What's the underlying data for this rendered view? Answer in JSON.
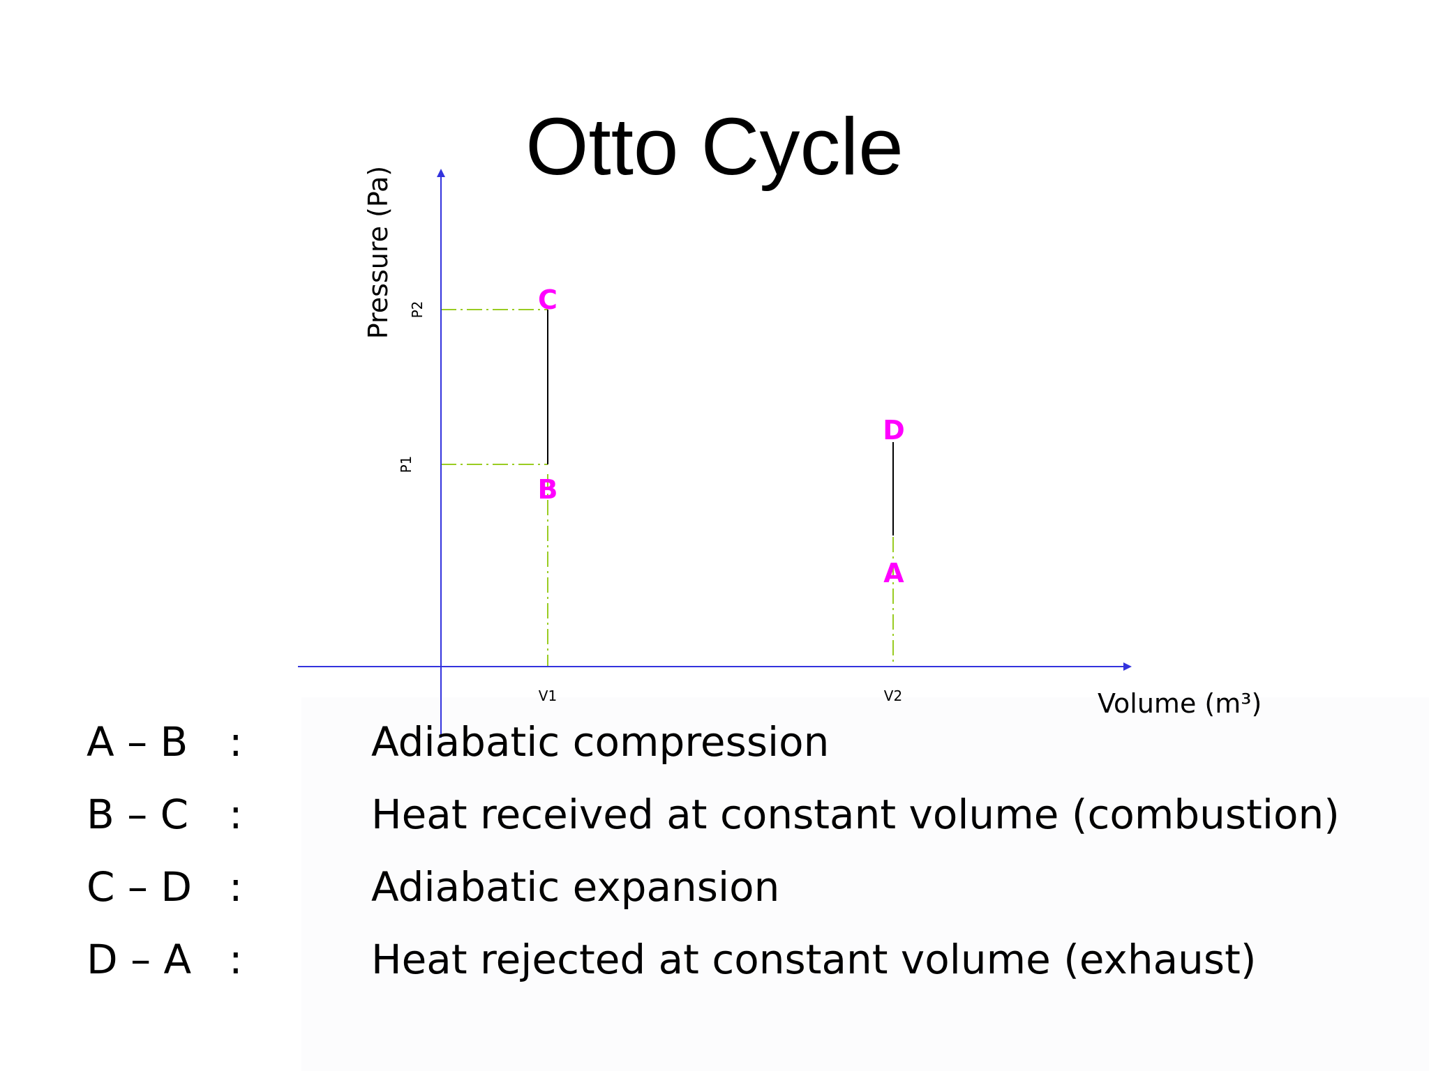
{
  "title": "Otto Cycle",
  "chart_data": {
    "type": "line",
    "title": "Otto Cycle",
    "ylabel": "Pressure (Pa)",
    "xlabel": "Volume (m³)",
    "x_ticks": [
      "V1",
      "V2"
    ],
    "y_ticks": [
      "P1",
      "P2"
    ],
    "points": [
      {
        "label": "A",
        "x": "V2"
      },
      {
        "label": "B",
        "x": "V1",
        "y": "P1"
      },
      {
        "label": "C",
        "x": "V1",
        "y": "P2"
      },
      {
        "label": "D",
        "x": "V2"
      }
    ],
    "colors": {
      "axis": "#3333dd",
      "guide": "#99cc22",
      "point_label": "#ff00ff",
      "process_line": "#000000"
    }
  },
  "processes": [
    {
      "segment": "A – B",
      "colon": ":",
      "description": "Adiabatic compression"
    },
    {
      "segment": "B – C",
      "colon": ":",
      "description": "Heat received at constant volume (combustion)"
    },
    {
      "segment": "C – D",
      "colon": ":",
      "description": "Adiabatic expansion"
    },
    {
      "segment": "D – A",
      "colon": ":",
      "description": "Heat rejected at constant volume (exhaust)"
    }
  ]
}
